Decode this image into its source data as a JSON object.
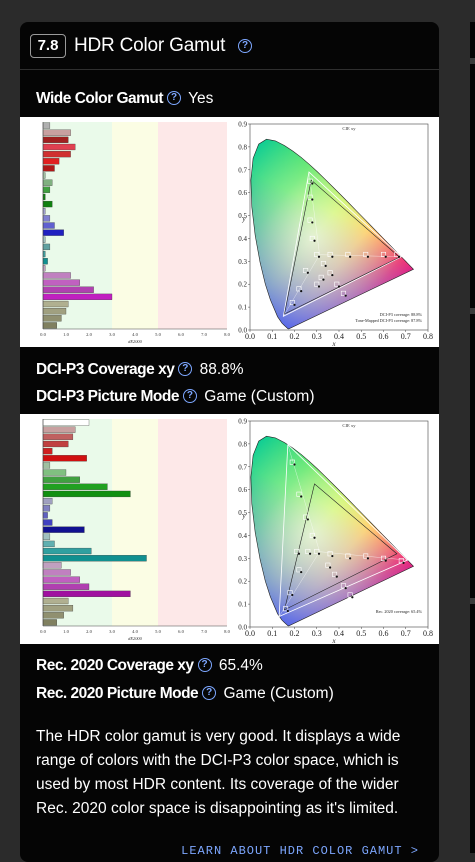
{
  "section": {
    "score": "7.8",
    "title": "HDR Color Gamut"
  },
  "rows": {
    "wide_color_gamut": {
      "label": "Wide Color Gamut",
      "value": "Yes"
    },
    "dci_coverage": {
      "label": "DCI-P3 Coverage xy",
      "value": "88.8%"
    },
    "dci_mode": {
      "label": "DCI-P3 Picture Mode",
      "value": "Game (Custom)"
    },
    "rec_coverage": {
      "label": "Rec. 2020 Coverage xy",
      "value": "65.4%"
    },
    "rec_mode": {
      "label": "Rec. 2020 Picture Mode",
      "value": "Game (Custom)"
    }
  },
  "description": "The HDR color gamut is very good. It displays a wide range of colors with the DCI-P3 color space, which is used by most HDR content. Its coverage of the wider Rec. 2020 color space is disappointing as it's limited.",
  "learn_link": "LEARN ABOUT HDR COLOR GAMUT",
  "learn_arrow": ">",
  "figures": [
    {
      "cie_title": "CIE xy",
      "legend": [
        "DCI-P3 coverage: 88.8%",
        "Tone-Mapped DCI-P3 coverage: 87.8%"
      ],
      "bar_axis_title": "dE2000",
      "bar_ticks": [
        "0.0",
        "1.0",
        "2.0",
        "3.0",
        "4.0",
        "5.0",
        "6.0",
        "7.0",
        "8.0"
      ],
      "x_ticks": [
        "0.0",
        "0.1",
        "0.2",
        "0.3",
        "0.4",
        "0.5",
        "0.6",
        "0.7",
        "0.8"
      ],
      "y_ticks": [
        "0.0",
        "0.1",
        "0.2",
        "0.3",
        "0.4",
        "0.5",
        "0.6",
        "0.7",
        "0.8",
        "0.9"
      ],
      "xlabel": "x",
      "ylabel": "y",
      "bars": [
        {
          "v": 0.3,
          "c": "#b0b0b0"
        },
        {
          "v": 1.2,
          "c": "#c8a0a0"
        },
        {
          "v": 1.1,
          "c": "#a02020"
        },
        {
          "v": 1.4,
          "c": "#e04050"
        },
        {
          "v": 1.2,
          "c": "#d03030"
        },
        {
          "v": 0.7,
          "c": "#e02020"
        },
        {
          "v": 0.5,
          "c": "#b01818"
        },
        {
          "v": 0.1,
          "c": "#a0c0a0"
        },
        {
          "v": 0.4,
          "c": "#80b080"
        },
        {
          "v": 0.3,
          "c": "#40a040"
        },
        {
          "v": 0.1,
          "c": "#108010"
        },
        {
          "v": 0.4,
          "c": "#108010"
        },
        {
          "v": 0.1,
          "c": "#a0a0d0"
        },
        {
          "v": 0.3,
          "c": "#8080d0"
        },
        {
          "v": 0.5,
          "c": "#6060d0"
        },
        {
          "v": 0.9,
          "c": "#2020c0"
        },
        {
          "v": 0.1,
          "c": "#a0c0c0"
        },
        {
          "v": 0.3,
          "c": "#60a0a0"
        },
        {
          "v": 0.1,
          "c": "#40a0a0"
        },
        {
          "v": 0.2,
          "c": "#109090"
        },
        {
          "v": 0.1,
          "c": "#c0a0c0"
        },
        {
          "v": 1.2,
          "c": "#c080c0"
        },
        {
          "v": 1.6,
          "c": "#c060c0"
        },
        {
          "v": 2.2,
          "c": "#b040b0"
        },
        {
          "v": 3.0,
          "c": "#c020c0"
        },
        {
          "v": 1.1,
          "c": "#b0b090"
        },
        {
          "v": 1.0,
          "c": "#a0a080"
        },
        {
          "v": 0.8,
          "c": "#909070"
        },
        {
          "v": 0.6,
          "c": "#808060"
        }
      ]
    },
    {
      "cie_title": "CIE xy",
      "legend": [
        "Rec. 2020 coverage: 65.4%"
      ],
      "bar_axis_title": "dE2000",
      "bar_ticks": [
        "0.0",
        "1.0",
        "2.0",
        "3.0",
        "4.0",
        "5.0",
        "6.0",
        "7.0",
        "8.0"
      ],
      "x_ticks": [
        "0.0",
        "0.1",
        "0.2",
        "0.3",
        "0.4",
        "0.5",
        "0.6",
        "0.7",
        "0.8"
      ],
      "y_ticks": [
        "0.0",
        "0.1",
        "0.2",
        "0.3",
        "0.4",
        "0.5",
        "0.6",
        "0.7",
        "0.8",
        "0.9"
      ],
      "xlabel": "x",
      "ylabel": "y",
      "bars": [
        {
          "v": 2.0,
          "c": "#ffffff"
        },
        {
          "v": 1.4,
          "c": "#c8a0a0"
        },
        {
          "v": 1.3,
          "c": "#c06060"
        },
        {
          "v": 1.1,
          "c": "#c04040"
        },
        {
          "v": 0.4,
          "c": "#d02020"
        },
        {
          "v": 1.9,
          "c": "#d01010"
        },
        {
          "v": 0.3,
          "c": "#a0c0a0"
        },
        {
          "v": 1.0,
          "c": "#80c080"
        },
        {
          "v": 1.6,
          "c": "#40a040"
        },
        {
          "v": 2.8,
          "c": "#20a020"
        },
        {
          "v": 3.8,
          "c": "#109010"
        },
        {
          "v": 0.4,
          "c": "#a0a0c0"
        },
        {
          "v": 0.3,
          "c": "#8080c0"
        },
        {
          "v": 0.2,
          "c": "#6060c0"
        },
        {
          "v": 0.4,
          "c": "#4040c0"
        },
        {
          "v": 1.8,
          "c": "#101090"
        },
        {
          "v": 0.3,
          "c": "#a0c0c0"
        },
        {
          "v": 0.5,
          "c": "#60b0b0"
        },
        {
          "v": 2.1,
          "c": "#30a0a0"
        },
        {
          "v": 4.5,
          "c": "#109090"
        },
        {
          "v": 0.8,
          "c": "#c0a0c0"
        },
        {
          "v": 1.2,
          "c": "#c080c0"
        },
        {
          "v": 1.6,
          "c": "#c060c0"
        },
        {
          "v": 2.0,
          "c": "#b040b0"
        },
        {
          "v": 3.8,
          "c": "#a010a0"
        },
        {
          "v": 1.1,
          "c": "#b0b090"
        },
        {
          "v": 1.3,
          "c": "#a0a080"
        },
        {
          "v": 0.9,
          "c": "#909070"
        },
        {
          "v": 0.6,
          "c": "#808060"
        }
      ]
    }
  ]
}
